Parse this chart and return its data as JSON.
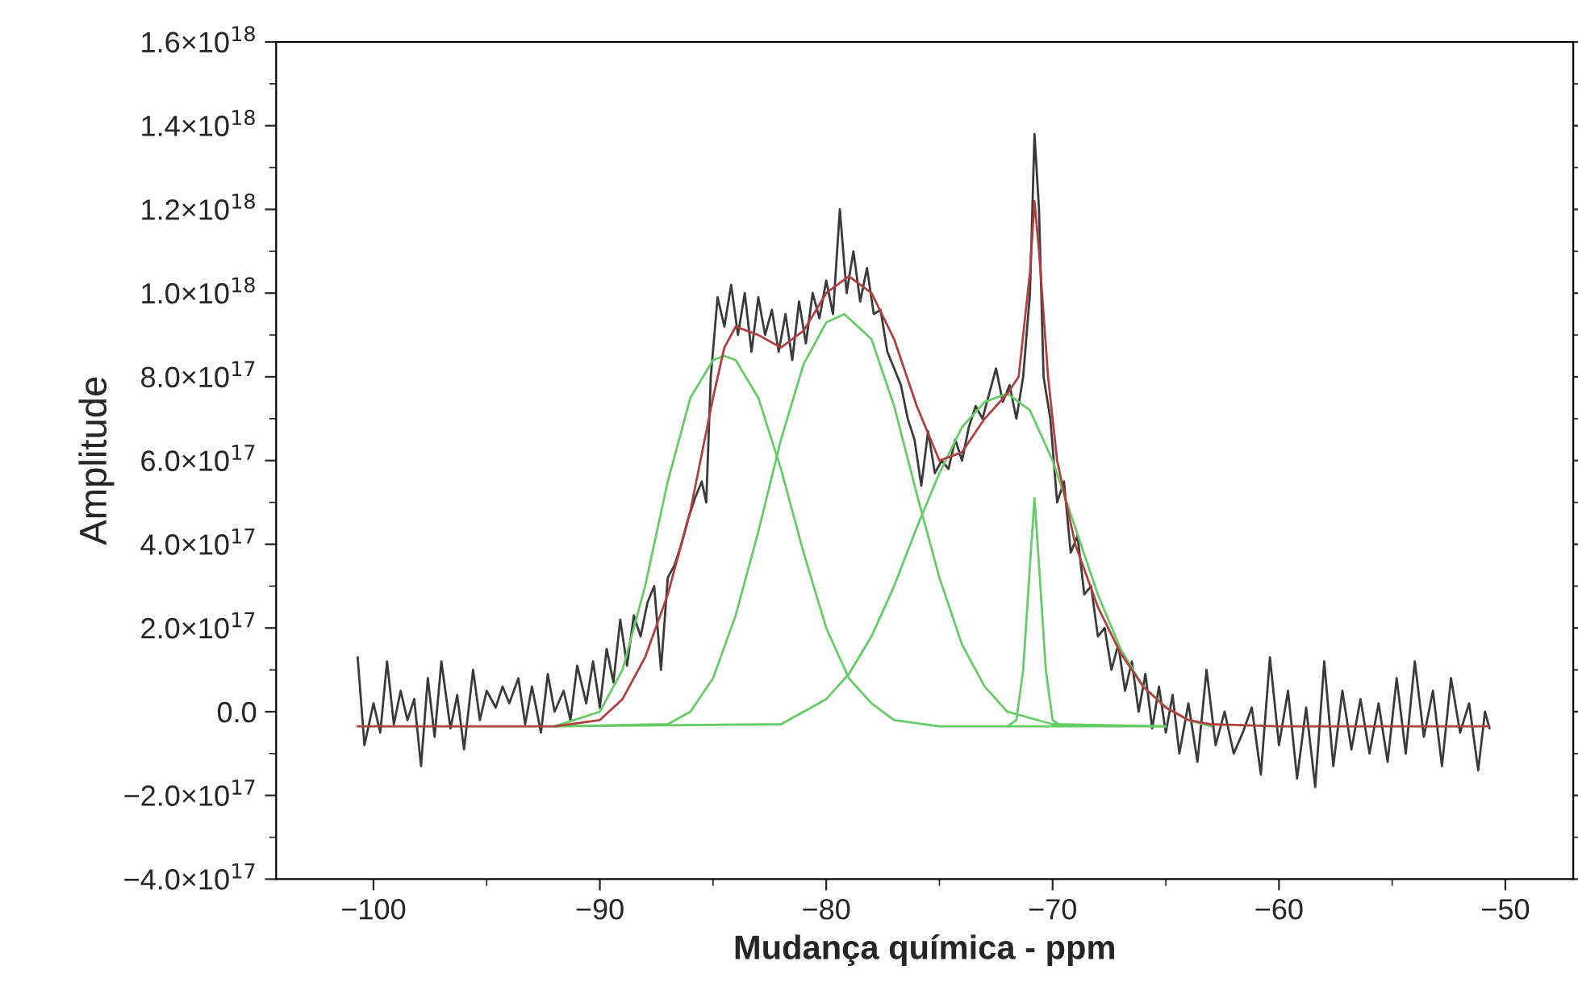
{
  "chart_data": {
    "type": "line",
    "xlabel": "Mudança química - ppm",
    "ylabel": "Amplitude",
    "xlim": [
      -104.3,
      -47
    ],
    "ylim": [
      -4e+17,
      1.6e+18
    ],
    "xticks": [
      {
        "value": -100,
        "label": "−100"
      },
      {
        "value": -90,
        "label": "−90"
      },
      {
        "value": -80,
        "label": "−80"
      },
      {
        "value": -70,
        "label": "−70"
      },
      {
        "value": -60,
        "label": "−60"
      },
      {
        "value": -50,
        "label": "−50"
      }
    ],
    "yticks": [
      {
        "value": -4e+17,
        "label": "−4.0×10$^{17}$"
      },
      {
        "value": -2e+17,
        "label": "−2.0×10$^{17}$"
      },
      {
        "value": 0,
        "label": "0.0"
      },
      {
        "value": 2e+17,
        "label": "2.0×10$^{17}$"
      },
      {
        "value": 4e+17,
        "label": "4.0×10$^{17}$"
      },
      {
        "value": 6e+17,
        "label": "6.0×10$^{17}$"
      },
      {
        "value": 8e+17,
        "label": "8.0×10$^{17}$"
      },
      {
        "value": 1e+18,
        "label": "1.0×10$^{18}$"
      },
      {
        "value": 1.2e+18,
        "label": "1.2×10$^{18}$"
      },
      {
        "value": 1.4e+18,
        "label": "1.4×10$^{18}$"
      },
      {
        "value": 1.6e+18,
        "label": "1.6×10$^{18}$"
      }
    ],
    "grid": false,
    "marker": "none",
    "line_style": "solid",
    "series": [
      {
        "color": "#3a3a3a",
        "x": [
          -100.7,
          -100.4,
          -100.0,
          -99.7,
          -99.4,
          -99.1,
          -98.8,
          -98.5,
          -98.2,
          -97.9,
          -97.6,
          -97.3,
          -97.0,
          -96.6,
          -96.3,
          -96.0,
          -95.6,
          -95.3,
          -95.0,
          -94.6,
          -94.3,
          -94.0,
          -93.6,
          -93.3,
          -93.0,
          -92.6,
          -92.3,
          -92.0,
          -91.6,
          -91.3,
          -91.0,
          -90.6,
          -90.3,
          -90.0,
          -89.7,
          -89.4,
          -89.1,
          -88.8,
          -88.5,
          -88.2,
          -87.9,
          -87.6,
          -87.3,
          -87.0,
          -86.7,
          -86.4,
          -86.1,
          -85.8,
          -85.5,
          -85.3,
          -85.1,
          -84.8,
          -84.5,
          -84.2,
          -83.9,
          -83.6,
          -83.3,
          -83.0,
          -82.7,
          -82.4,
          -82.1,
          -81.8,
          -81.5,
          -81.2,
          -80.9,
          -80.6,
          -80.3,
          -80.0,
          -79.7,
          -79.4,
          -79.1,
          -78.8,
          -78.5,
          -78.2,
          -77.9,
          -77.6,
          -77.3,
          -77.0,
          -76.7,
          -76.4,
          -76.1,
          -75.8,
          -75.5,
          -75.2,
          -74.9,
          -74.6,
          -74.3,
          -74.0,
          -73.7,
          -73.4,
          -73.1,
          -72.8,
          -72.5,
          -72.2,
          -71.9,
          -71.6,
          -71.3,
          -71.0,
          -70.8,
          -70.6,
          -70.4,
          -70.1,
          -69.8,
          -69.5,
          -69.2,
          -68.9,
          -68.6,
          -68.3,
          -68.0,
          -67.7,
          -67.4,
          -67.1,
          -66.8,
          -66.5,
          -66.2,
          -65.9,
          -65.6,
          -65.3,
          -65.0,
          -64.7,
          -64.4,
          -64.0,
          -63.6,
          -63.2,
          -62.8,
          -62.4,
          -62.0,
          -61.6,
          -61.2,
          -60.8,
          -60.4,
          -60.0,
          -59.6,
          -59.2,
          -58.8,
          -58.4,
          -58.0,
          -57.6,
          -57.2,
          -56.8,
          -56.4,
          -56.0,
          -55.6,
          -55.2,
          -54.8,
          -54.4,
          -54.0,
          -53.6,
          -53.2,
          -52.8,
          -52.4,
          -52.0,
          -51.6,
          -51.2,
          -50.9,
          -50.7
        ],
        "values": [
          1.3e+17,
          -8e+16,
          2e+16,
          -5e+16,
          1.2e+17,
          -3e+16,
          5e+16,
          -2e+16,
          3e+16,
          -1.3e+17,
          8e+16,
          -6e+16,
          1.2e+17,
          -4e+16,
          4e+16,
          -9e+16,
          1e+17,
          -2e+16,
          5e+16,
          1e+16,
          6e+16,
          2e+16,
          8e+16,
          -3e+16,
          6e+16,
          -5e+16,
          9e+16,
          0.0,
          5e+16,
          -2e+16,
          1.1e+17,
          2e+16,
          1.2e+17,
          1e+16,
          1.5e+17,
          7e+16,
          2.2e+17,
          1.1e+17,
          2.3e+17,
          1.8e+17,
          2.6e+17,
          3e+17,
          1e+17,
          3.2e+17,
          3.5e+17,
          4e+17,
          4.6e+17,
          5.1e+17,
          5.5e+17,
          5e+17,
          8e+17,
          9.9e+17,
          9.2e+17,
          1.02e+18,
          9e+17,
          1e+18,
          8.6e+17,
          9.9e+17,
          9e+17,
          9.6e+17,
          8.6e+17,
          9.5e+17,
          8.4e+17,
          9.8e+17,
          8.8e+17,
          1e+18,
          9.4e+17,
          1.03e+18,
          9.5e+17,
          1.2e+18,
          1e+18,
          1.1e+18,
          9.8e+17,
          1.06e+18,
          9.5e+17,
          9.6e+17,
          8.6e+17,
          8.2e+17,
          7.8e+17,
          7e+17,
          6.5e+17,
          5.4e+17,
          6.7e+17,
          5.7e+17,
          6e+17,
          5.8e+17,
          6.5e+17,
          6e+17,
          6.8e+17,
          7.3e+17,
          7e+17,
          7.6e+17,
          8.2e+17,
          7.4e+17,
          7.8e+17,
          7e+17,
          8e+17,
          1e+18,
          1.38e+18,
          1.2e+18,
          8e+17,
          7e+17,
          5e+17,
          5.5e+17,
          3.8e+17,
          4.2e+17,
          2.8e+17,
          3e+17,
          1.8e+17,
          2e+17,
          1e+17,
          1.6e+17,
          5e+16,
          1.2e+17,
          0.0,
          9e+16,
          -4e+16,
          6e+16,
          -5e+16,
          4e+16,
          -1e+17,
          2e+16,
          -1.2e+17,
          1e+17,
          -8e+16,
          0.0,
          -1e+17,
          -5e+16,
          1e+16,
          -1.5e+17,
          1.3e+17,
          -8e+16,
          5e+16,
          -1.6e+17,
          1e+16,
          -1.8e+17,
          1.2e+17,
          -1.3e+17,
          5e+16,
          -9e+16,
          3e+16,
          -1e+17,
          2e+16,
          -1.2e+17,
          8e+16,
          -1e+17,
          1.2e+17,
          -6e+16,
          5e+16,
          -1.3e+17,
          8e+16,
          -5e+16,
          2e+16,
          -1.4e+17,
          0.0,
          -4e+16
        ]
      },
      {
        "color": "#66cc66",
        "x": [
          -92,
          -90,
          -89,
          -88,
          -87,
          -86,
          -85,
          -84.5,
          -84,
          -83,
          -82,
          -81,
          -80,
          -79,
          -78,
          -77,
          -75,
          -65
        ],
        "values": [
          -3.5e+16,
          0.0,
          1e+17,
          3e+17,
          5.5e+17,
          7.5e+17,
          8.4e+17,
          8.5e+17,
          8.4e+17,
          7.5e+17,
          5.8e+17,
          3.8e+17,
          2e+17,
          8e+16,
          2e+16,
          -2e+16,
          -3.5e+16,
          -3.5e+16
        ]
      },
      {
        "color": "#66cc66",
        "x": [
          -92,
          -87,
          -86,
          -85,
          -84,
          -83,
          -82,
          -81,
          -80,
          -79.2,
          -78,
          -77,
          -76,
          -75,
          -74,
          -73,
          -72,
          -70,
          -65
        ],
        "values": [
          -3.5e+16,
          -3e+16,
          0.0,
          8e+16,
          2.3e+17,
          4.3e+17,
          6.5e+17,
          8.3e+17,
          9.3e+17,
          9.5e+17,
          8.9e+17,
          7.3e+17,
          5.2e+17,
          3.2e+17,
          1.6e+17,
          6e+16,
          0.0,
          -3e+16,
          -3.5e+16
        ]
      },
      {
        "color": "#66cc66",
        "x": [
          -92,
          -82,
          -80,
          -79,
          -78,
          -77,
          -76,
          -75,
          -74,
          -73,
          -72,
          -71,
          -70,
          -69,
          -68,
          -67,
          -66,
          -65,
          -64,
          -63
        ],
        "values": [
          -3.5e+16,
          -3e+16,
          3e+16,
          9e+16,
          1.8e+17,
          3e+17,
          4.4e+17,
          5.7e+17,
          6.8e+17,
          7.4e+17,
          7.6e+17,
          7.2e+17,
          6e+17,
          4.4e+17,
          2.8e+17,
          1.5e+17,
          6e+16,
          1e+16,
          -2e+16,
          -3.5e+16
        ]
      },
      {
        "color": "#66cc66",
        "x": [
          -72,
          -71.6,
          -71.3,
          -71.0,
          -70.8,
          -70.6,
          -70.3,
          -70.0,
          -69.6
        ],
        "values": [
          -3.5e+16,
          -2e+16,
          1e+17,
          3.5e+17,
          5.1e+17,
          3.5e+17,
          1e+17,
          -2e+16,
          -3.5e+16
        ]
      },
      {
        "color": "#b04040",
        "x": [
          -100.7,
          -92,
          -90,
          -89,
          -88,
          -87,
          -86,
          -85,
          -84.5,
          -84,
          -83,
          -82,
          -81,
          -80,
          -79,
          -78,
          -77,
          -76,
          -75,
          -74,
          -73,
          -72,
          -71.5,
          -71,
          -70.8,
          -70.6,
          -70.2,
          -69.8,
          -69,
          -68,
          -67,
          -66,
          -65,
          -64,
          -63,
          -60,
          -50.7
        ],
        "values": [
          -3.5e+16,
          -3.5e+16,
          -2e+16,
          3e+16,
          1.3e+17,
          2.8e+17,
          4.8e+17,
          7.5e+17,
          8.7e+17,
          9.2e+17,
          9e+17,
          8.7e+17,
          9.1e+17,
          1e+18,
          1.04e+18,
          1e+18,
          8.9e+17,
          7.3e+17,
          6e+17,
          6.2e+17,
          7e+17,
          7.6e+17,
          8e+17,
          1.05e+18,
          1.22e+18,
          1.1e+18,
          8e+17,
          6e+17,
          4e+17,
          2.5e+17,
          1.4e+17,
          6e+16,
          1e+16,
          -2e+16,
          -3e+16,
          -3.5e+16,
          -3.5e+16
        ]
      }
    ]
  }
}
